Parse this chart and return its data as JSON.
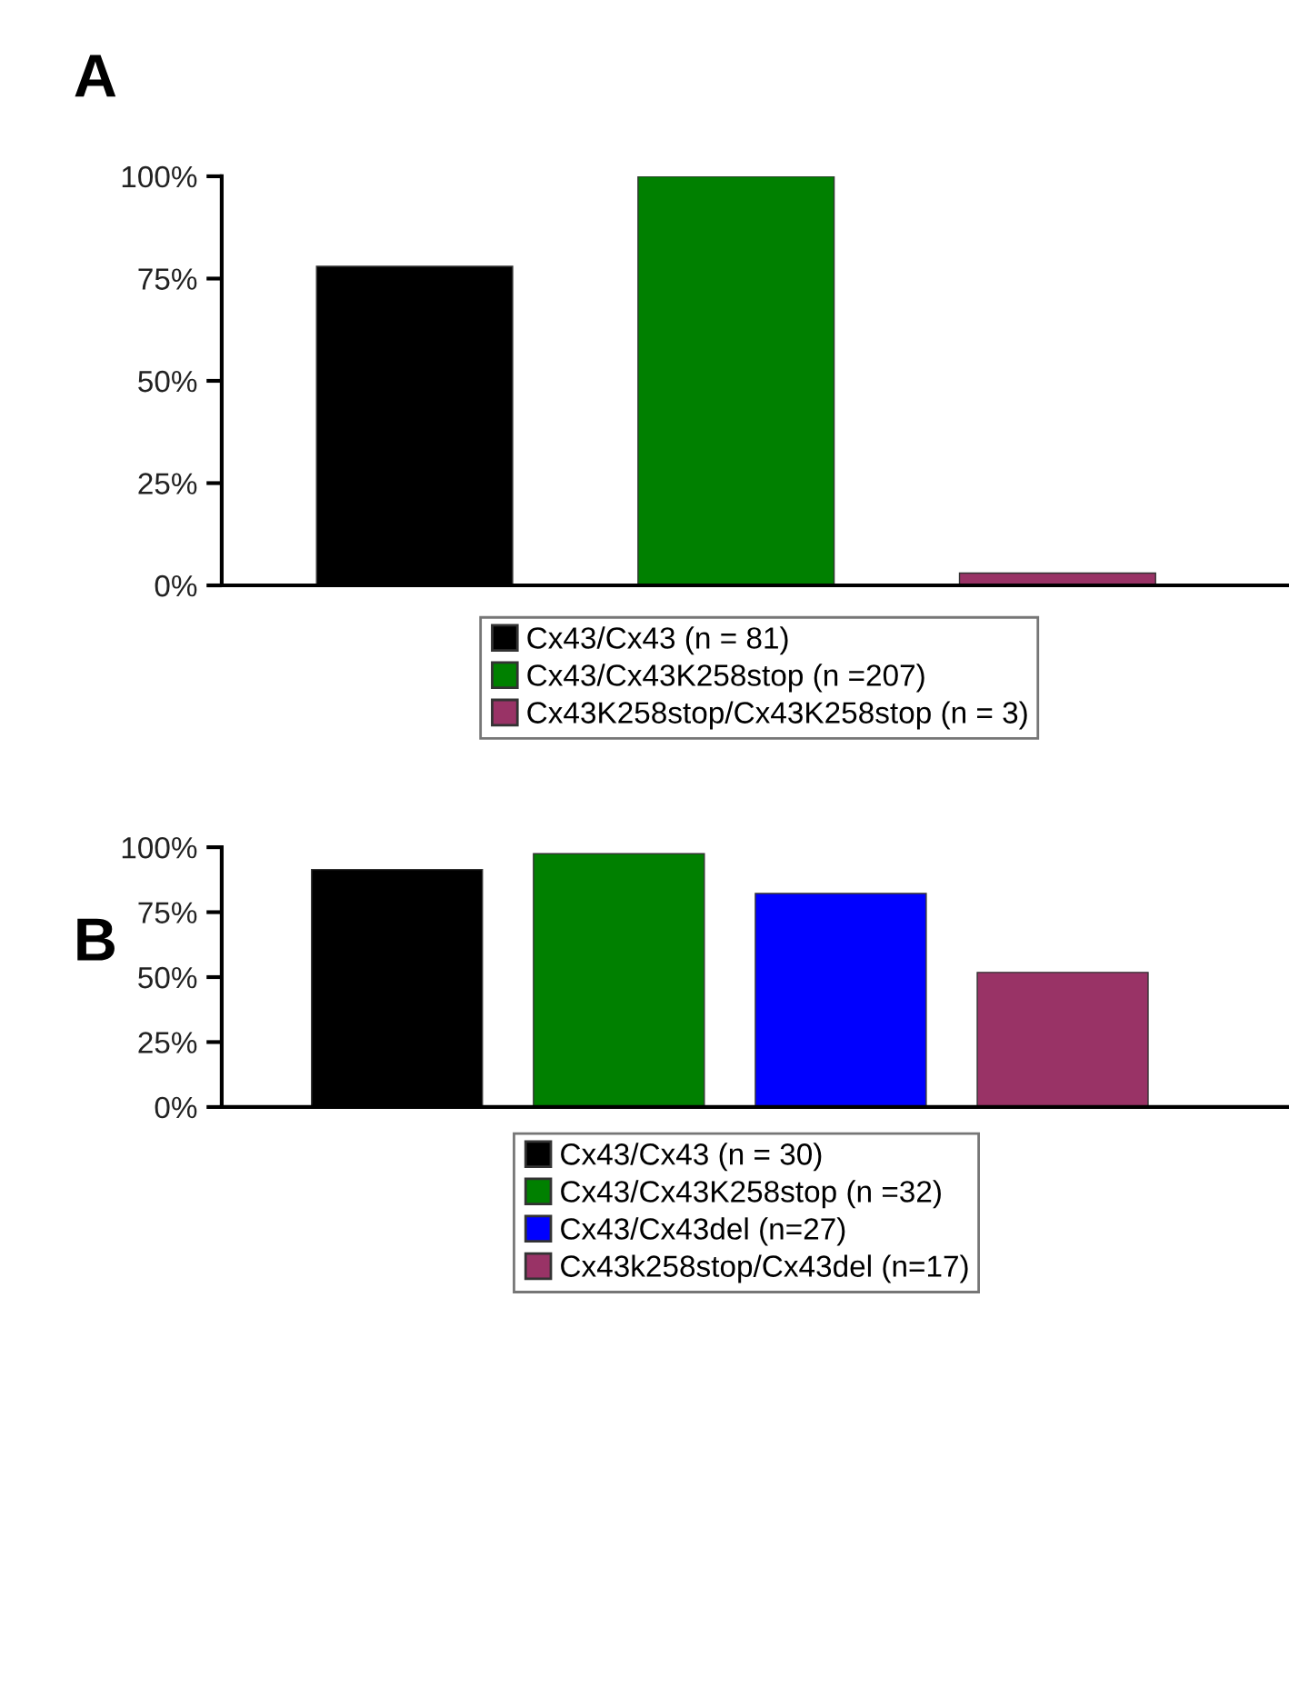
{
  "chart_data": [
    {
      "type": "bar",
      "title": "A",
      "categories": [
        null,
        null,
        null
      ],
      "series": [
        {
          "name": "Cx43/Cx43 (n = 81)",
          "color": "#000000",
          "values": [
            78,
            null,
            null
          ]
        },
        {
          "name": "Cx43/Cx43K258stop (n =207)",
          "color": "#008000",
          "values": [
            null,
            100,
            null
          ]
        },
        {
          "name": "Cx43K258stop/Cx43K258stop (n = 3)",
          "color": "#993366",
          "values": [
            null,
            null,
            3
          ]
        }
      ],
      "ylim": [
        0,
        100
      ],
      "yticks": [
        {
          "value": 0,
          "label": "0%"
        },
        {
          "value": 25,
          "label": "25%"
        },
        {
          "value": 50,
          "label": "50%"
        },
        {
          "value": 75,
          "label": "75%"
        },
        {
          "value": 100,
          "label": "100%"
        }
      ],
      "grid": false,
      "legend": "bottom"
    },
    {
      "type": "bar",
      "title": "B",
      "categories": [
        null,
        null,
        null,
        null
      ],
      "series": [
        {
          "name": "Cx43/Cx43 (n = 30)",
          "color": "#000000",
          "values": [
            91.4,
            null,
            null,
            null
          ]
        },
        {
          "name": "Cx43/Cx43K258stop (n =32)",
          "color": "#008000",
          "values": [
            null,
            97.5,
            null,
            null
          ]
        },
        {
          "name": "Cx43/Cx43del (n=27)",
          "color": "#0000ff",
          "values": [
            null,
            null,
            82.2,
            null
          ]
        },
        {
          "name": "Cx43k258stop/Cx43del (n=17)",
          "color": "#993366",
          "values": [
            null,
            null,
            null,
            51.8
          ]
        }
      ],
      "ylim": [
        0,
        100
      ],
      "yticks": [
        {
          "value": 0,
          "label": "0%"
        },
        {
          "value": 25,
          "label": "25%"
        },
        {
          "value": 50,
          "label": "50%"
        },
        {
          "value": 75,
          "label": "75%"
        },
        {
          "value": 100,
          "label": "100%"
        }
      ],
      "grid": false,
      "legend": "bottom"
    }
  ]
}
